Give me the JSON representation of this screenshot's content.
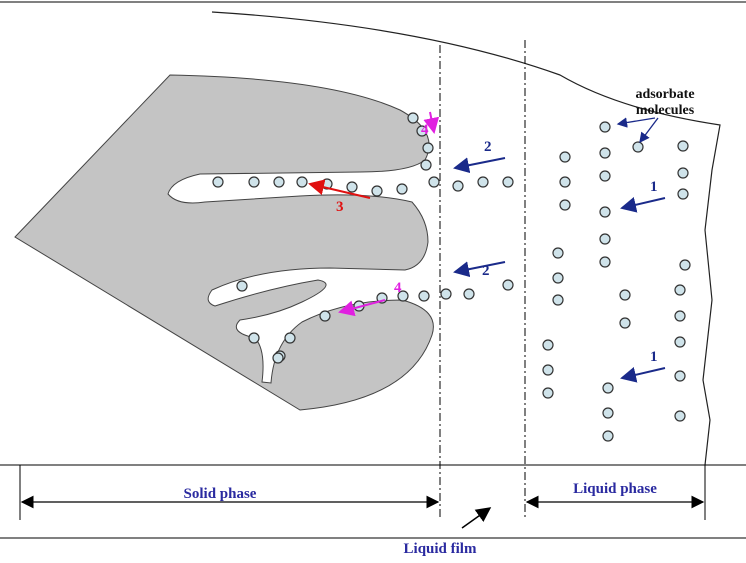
{
  "annotations": {
    "adsorbate": [
      "adsorbate",
      "molecules"
    ],
    "steps": [
      "4",
      "2",
      "3",
      "1",
      "2",
      "4",
      "1"
    ]
  },
  "regions": {
    "solid": "Solid phase",
    "liquid": "Liquid phase",
    "film": "Liquid film"
  }
}
